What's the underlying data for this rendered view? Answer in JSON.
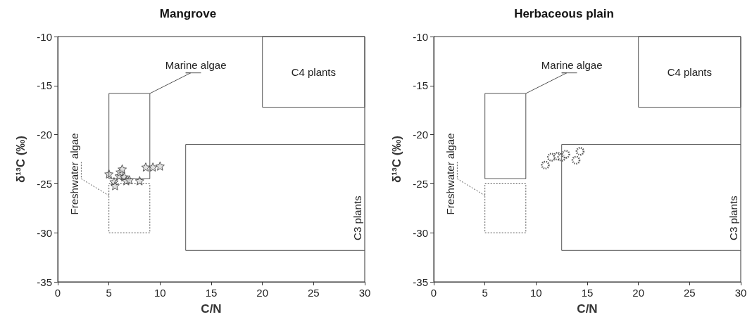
{
  "chart_data": [
    {
      "type": "scatter",
      "title": "Mangrove",
      "xlabel": "C/N",
      "ylabel": "δ¹³C (‰)",
      "xlim": [
        0,
        30
      ],
      "xticks": [
        0,
        5,
        10,
        15,
        20,
        25,
        30
      ],
      "ylim": [
        -35,
        -10
      ],
      "yticks": [
        -35,
        -30,
        -25,
        -20,
        -15,
        -10
      ],
      "grid": false,
      "series": [
        {
          "color": "#d9d9d9",
          "marker": "star",
          "x": [
            5,
            5.5,
            5.6,
            6,
            6.1,
            6.3,
            6.5,
            6.7,
            7,
            8,
            8.6,
            9.3,
            10
          ],
          "values": [
            -24,
            -24.8,
            -25.2,
            -24.2,
            -23.8,
            -23.5,
            -24.3,
            -24.7,
            -24.6,
            -24.7,
            -23.3,
            -23.3,
            -23.2
          ]
        }
      ],
      "annotations": [
        "Marine algae",
        "C4 plants",
        "Freshwater algae",
        "C3 plants"
      ]
    },
    {
      "type": "scatter",
      "title": "Herbaceous plain",
      "xlabel": "C/N",
      "ylabel": "δ¹³C (‰)",
      "xlim": [
        0,
        30
      ],
      "xticks": [
        0,
        5,
        10,
        15,
        20,
        25,
        30
      ],
      "ylim": [
        -35,
        -10
      ],
      "yticks": [
        -35,
        -30,
        -25,
        -20,
        -15,
        -10
      ],
      "grid": false,
      "series": [
        {
          "color": "#ffffff",
          "marker": "circle",
          "x": [
            10.9,
            11.5,
            12.1,
            12.5,
            12.9,
            13.9,
            14.3
          ],
          "values": [
            -23.1,
            -22.3,
            -22.2,
            -22.3,
            -22,
            -22.6,
            -21.7
          ]
        }
      ],
      "annotations": [
        "Marine algae",
        "C4 plants",
        "Freshwater algae",
        "C3 plants"
      ]
    }
  ]
}
